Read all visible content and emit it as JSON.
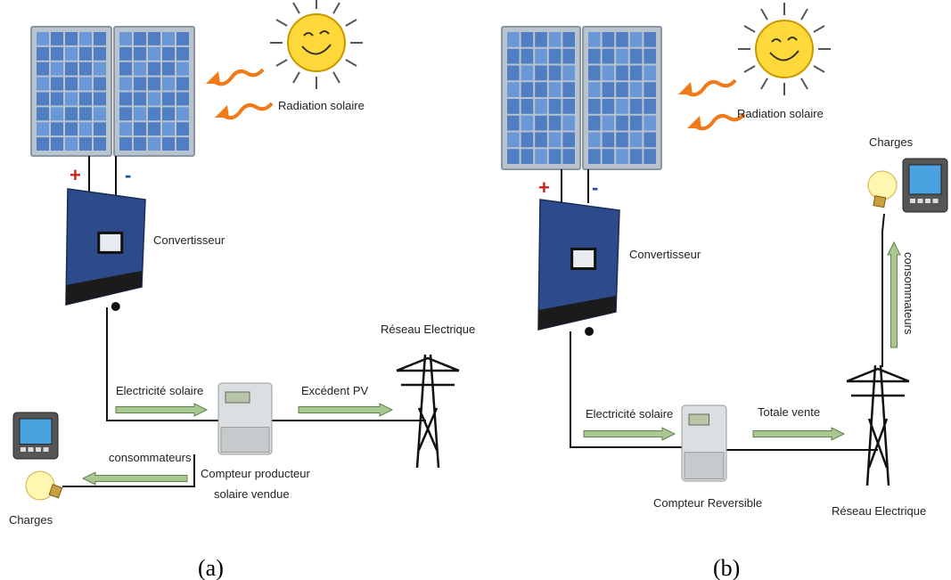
{
  "panels": [
    {
      "caption": "(a)",
      "labels": {
        "radiation": "Radiation solaire",
        "plus": "+",
        "minus": "-",
        "converter": "Convertisseur",
        "solar_electricity": "Electricité solaire",
        "surplus": "Excédent PV",
        "grid": "Réseau Electrique",
        "consumers": "consommateurs",
        "meter_line1": "Compteur producteur",
        "meter_line2": "solaire vendue",
        "loads": "Charges"
      }
    },
    {
      "caption": "(b)",
      "labels": {
        "radiation": "Radiation solaire",
        "plus": "+",
        "minus": "-",
        "loads": "Charges",
        "converter": "Convertisseur",
        "consumers": "consommateurs",
        "solar_electricity": "Electricité solaire",
        "total_sale": "Totale vente",
        "meter": "Compteur Reversible",
        "grid": "Réseau Electrique"
      }
    }
  ]
}
